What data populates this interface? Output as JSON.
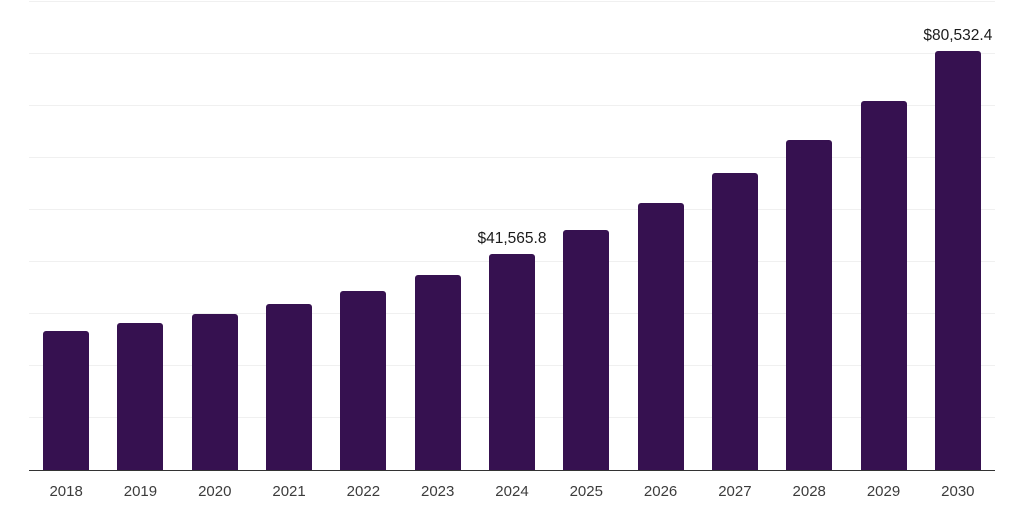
{
  "chart_data": {
    "type": "bar",
    "title": "",
    "xlabel": "",
    "ylabel": "",
    "ylim": [
      0,
      90000
    ],
    "gridline_step": 10000,
    "grid": true,
    "legend": false,
    "currency_unit": "$",
    "colors": {
      "bar": "#361150",
      "gridline": "#f0f0f0",
      "axis": "#333333",
      "tick_label": "#3c3c3c",
      "value_label": "#1b1b1b",
      "background": "#ffffff"
    },
    "categories": [
      "2018",
      "2019",
      "2020",
      "2021",
      "2022",
      "2023",
      "2024",
      "2025",
      "2026",
      "2027",
      "2028",
      "2029",
      "2030"
    ],
    "points": [
      {
        "category": "2018",
        "value": 26700,
        "label": ""
      },
      {
        "category": "2019",
        "value": 28250,
        "label": ""
      },
      {
        "category": "2020",
        "value": 30050,
        "label": ""
      },
      {
        "category": "2021",
        "value": 31900,
        "label": ""
      },
      {
        "category": "2022",
        "value": 34400,
        "label": ""
      },
      {
        "category": "2023",
        "value": 37500,
        "label": ""
      },
      {
        "category": "2024",
        "value": 41565.8,
        "label": "$41,565.8"
      },
      {
        "category": "2025",
        "value": 46150,
        "label": ""
      },
      {
        "category": "2026",
        "value": 51300,
        "label": ""
      },
      {
        "category": "2027",
        "value": 57200,
        "label": ""
      },
      {
        "category": "2028",
        "value": 63450,
        "label": ""
      },
      {
        "category": "2029",
        "value": 70900,
        "label": ""
      },
      {
        "category": "2030",
        "value": 80532.4,
        "label": "$80,532.4"
      }
    ],
    "note": "values for unlabeled bars estimated from gridlines (grid step 10,000)"
  }
}
